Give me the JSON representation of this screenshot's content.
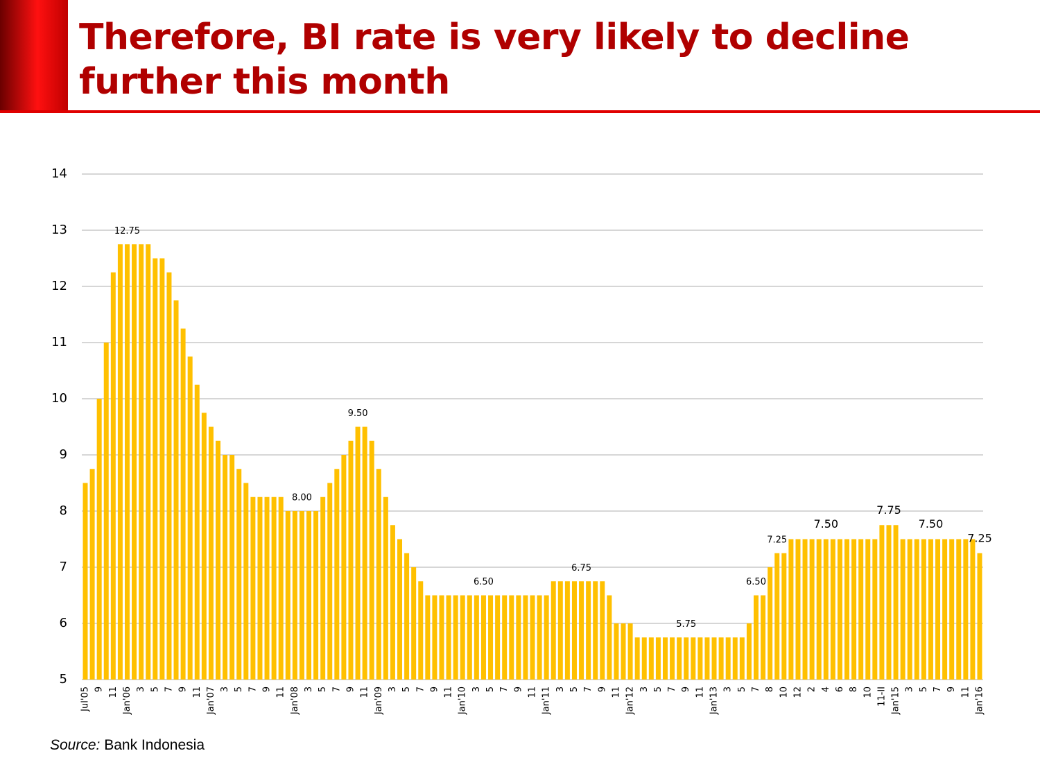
{
  "chart_data": {
    "type": "bar",
    "title": "Therefore, BI rate is very likely to decline further this month",
    "source_label": "Source:",
    "source": "Bank Indonesia",
    "color": "#FFC000",
    "grid": true,
    "ylim": [
      5,
      14
    ],
    "yticks": [
      5,
      6,
      7,
      8,
      9,
      10,
      11,
      12,
      13,
      14
    ],
    "categories": [
      "Jul'05",
      null,
      "9",
      null,
      "11",
      null,
      "Jan'06",
      null,
      "3",
      null,
      "5",
      null,
      "7",
      null,
      "9",
      null,
      "11",
      null,
      "Jan'07",
      null,
      "3",
      null,
      "5",
      null,
      "7",
      null,
      "9",
      null,
      "11",
      null,
      "Jan'08",
      null,
      "3",
      null,
      "5",
      null,
      "7",
      null,
      "9",
      null,
      "11",
      null,
      "Jan'09",
      null,
      "3",
      null,
      "5",
      null,
      "7",
      null,
      "9",
      null,
      "11",
      null,
      "Jan'10",
      null,
      "3",
      null,
      "5",
      null,
      "7",
      null,
      "9",
      null,
      "11",
      null,
      "Jan'11",
      null,
      "3",
      null,
      "5",
      null,
      "7",
      null,
      "9",
      null,
      "11",
      null,
      "Jan'12",
      null,
      "3",
      null,
      "5",
      null,
      "7",
      null,
      "9",
      null,
      "11",
      null,
      "Jan'13",
      null,
      "3",
      null,
      "5",
      null,
      "7",
      null,
      "8",
      null,
      "10",
      null,
      "12",
      null,
      "2",
      null,
      "4",
      null,
      "6",
      null,
      "8",
      null,
      "10",
      null,
      "11-II",
      null,
      "Jan'15",
      null,
      "3",
      null,
      "5",
      null,
      "7",
      null,
      "9",
      null,
      "11",
      null,
      "Jan'16"
    ],
    "values": [
      8.5,
      8.75,
      10,
      11,
      12.25,
      12.75,
      12.75,
      12.75,
      12.75,
      12.75,
      12.5,
      12.5,
      12.25,
      11.75,
      11.25,
      10.75,
      10.25,
      9.75,
      9.5,
      9.25,
      9,
      9,
      8.75,
      8.5,
      8.25,
      8.25,
      8.25,
      8.25,
      8.25,
      8,
      8,
      8,
      8,
      8,
      8.25,
      8.5,
      8.75,
      9,
      9.25,
      9.5,
      9.5,
      9.25,
      8.75,
      8.25,
      7.75,
      7.5,
      7.25,
      7,
      6.75,
      6.5,
      6.5,
      6.5,
      6.5,
      6.5,
      6.5,
      6.5,
      6.5,
      6.5,
      6.5,
      6.5,
      6.5,
      6.5,
      6.5,
      6.5,
      6.5,
      6.5,
      6.5,
      6.75,
      6.75,
      6.75,
      6.75,
      6.75,
      6.75,
      6.75,
      6.75,
      6.5,
      6,
      6,
      6,
      5.75,
      5.75,
      5.75,
      5.75,
      5.75,
      5.75,
      5.75,
      5.75,
      5.75,
      5.75,
      5.75,
      5.75,
      5.75,
      5.75,
      5.75,
      5.75,
      6,
      6.5,
      6.5,
      7,
      7.25,
      7.25,
      7.5,
      7.5,
      7.5,
      7.5,
      7.5,
      7.5,
      7.5,
      7.5,
      7.5,
      7.5,
      7.5,
      7.5,
      7.5,
      7.75,
      7.75,
      7.75,
      7.5,
      7.5,
      7.5,
      7.5,
      7.5,
      7.5,
      7.5,
      7.5,
      7.5,
      7.5,
      7.5,
      7.25
    ],
    "value_labels": [
      null,
      null,
      null,
      null,
      null,
      null,
      "12.75",
      null,
      null,
      null,
      null,
      null,
      null,
      null,
      null,
      null,
      null,
      null,
      null,
      null,
      null,
      null,
      null,
      null,
      null,
      null,
      null,
      null,
      null,
      null,
      null,
      "8.00",
      null,
      null,
      null,
      null,
      null,
      null,
      null,
      "9.50",
      null,
      null,
      null,
      null,
      null,
      null,
      null,
      null,
      null,
      null,
      null,
      null,
      null,
      null,
      null,
      null,
      null,
      "6.50",
      null,
      null,
      null,
      null,
      null,
      null,
      null,
      null,
      null,
      null,
      null,
      null,
      null,
      "6.75",
      null,
      null,
      null,
      null,
      null,
      null,
      null,
      null,
      null,
      null,
      null,
      null,
      null,
      null,
      "5.75",
      null,
      null,
      null,
      null,
      null,
      null,
      null,
      null,
      null,
      "6.50",
      null,
      null,
      "7.25",
      null,
      null,
      null,
      null,
      null,
      null,
      "7.50",
      null,
      null,
      null,
      null,
      null,
      null,
      null,
      null,
      "7.75",
      null,
      null,
      null,
      null,
      null,
      "7.50",
      null,
      null,
      null,
      null,
      null,
      null,
      "7.25"
    ]
  }
}
